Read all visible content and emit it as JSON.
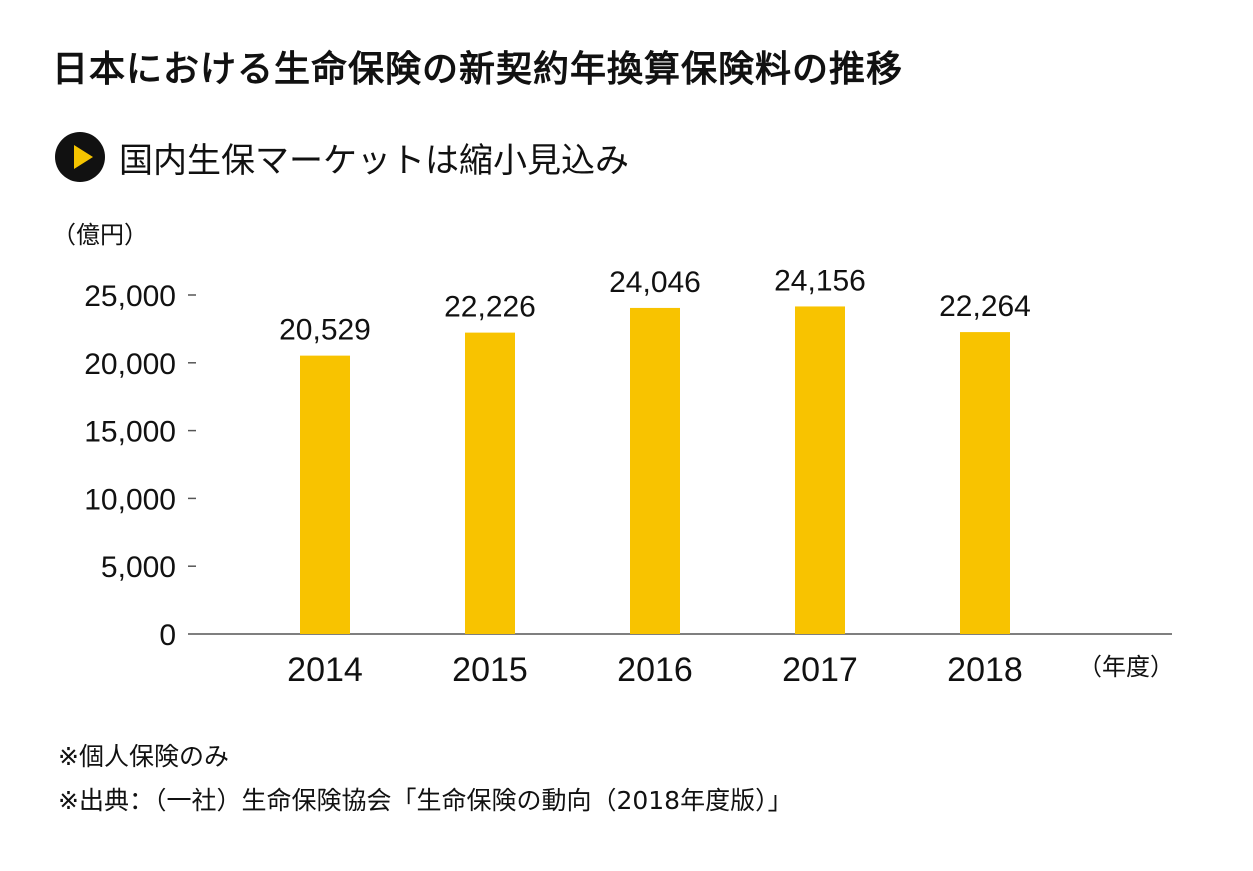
{
  "title": "日本における生命保険の新契約年換算保険料の推移",
  "subtitle": "国内生保マーケットは縮小見込み",
  "colors": {
    "bar": "#F8C300",
    "text": "#111111",
    "axis": "#555555"
  },
  "chart_data": {
    "type": "bar",
    "categories": [
      "2014",
      "2015",
      "2016",
      "2017",
      "2018"
    ],
    "values": [
      20529,
      22226,
      24046,
      24156,
      22264
    ],
    "value_labels": [
      "20,529",
      "22,226",
      "24,046",
      "24,156",
      "22,264"
    ],
    "y_unit": "（億円）",
    "x_unit": "（年度）",
    "ylim": [
      0,
      25000
    ],
    "yticks": [
      0,
      5000,
      10000,
      15000,
      20000,
      25000
    ],
    "ytick_labels": [
      "0",
      "5,000",
      "10,000",
      "15,000",
      "20,000",
      "25,000"
    ],
    "grid": false,
    "legend": "none"
  },
  "notes": [
    "※個人保険のみ",
    "※出典：（一社）生命保険協会「生命保険の動向（2018年度版）」"
  ]
}
